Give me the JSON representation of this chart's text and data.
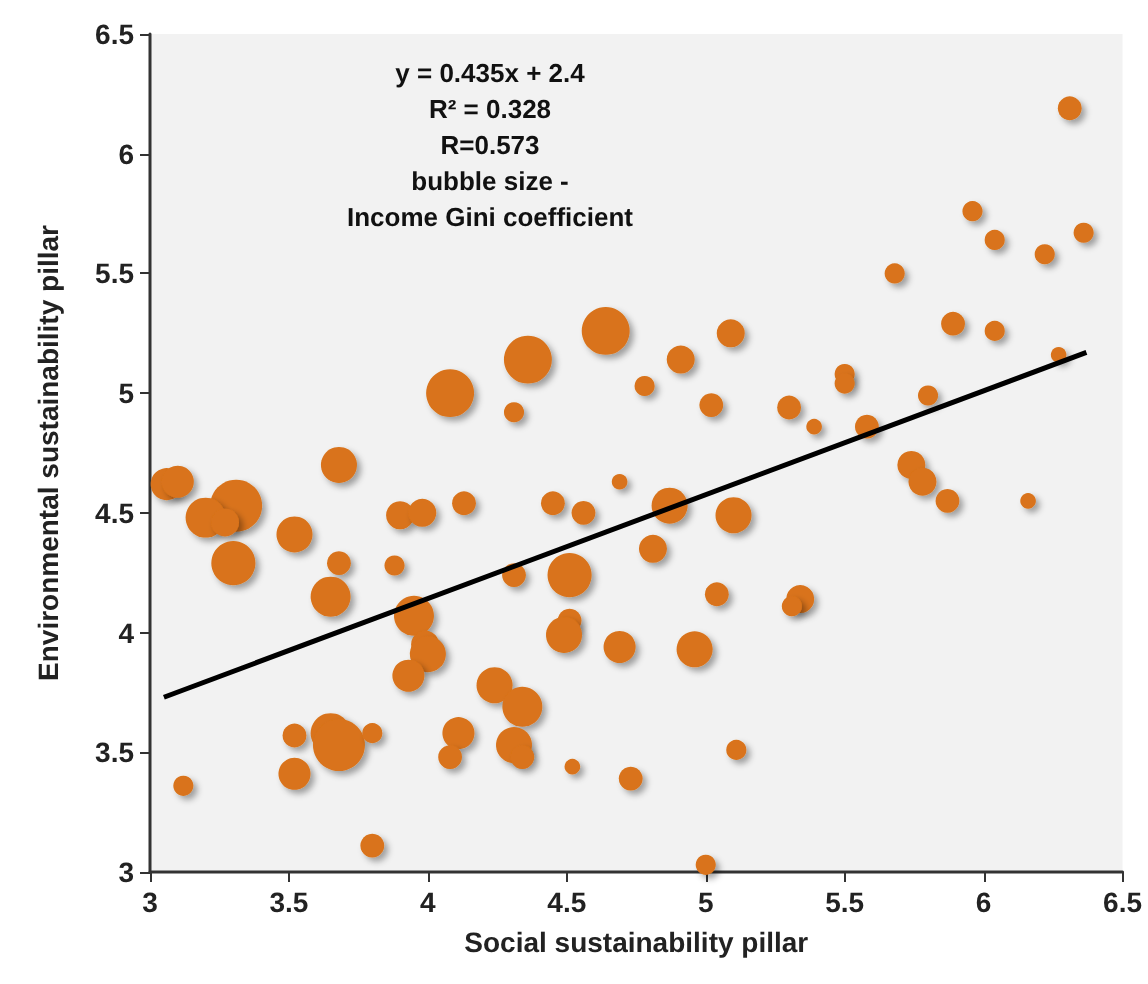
{
  "chart_data": {
    "type": "bubble",
    "xlabel": "Social sustainability pillar",
    "ylabel": "Environmental sustainability pillar",
    "annotations": [
      "y = 0.435x + 2.4",
      "R² = 0.328",
      "R=0.573",
      "bubble size -",
      "Income Gini coefficient"
    ],
    "xlim": [
      3,
      6.5
    ],
    "xticks": [
      3,
      3.5,
      4,
      4.5,
      5,
      5.5,
      6,
      6.5
    ],
    "ylim": [
      3,
      6.5
    ],
    "yticks": [
      3,
      3.5,
      4,
      4.5,
      5,
      5.5,
      6,
      6.5
    ],
    "grid": false,
    "series": [
      {
        "color": "#d9731a",
        "x": [
          3.06,
          3.1,
          3.31,
          3.2,
          3.27,
          3.3,
          3.52,
          3.68,
          3.68,
          3.65,
          3.88,
          3.9,
          3.98,
          4.13,
          4.45,
          4.56,
          4.69,
          4.31,
          4.51,
          3.95,
          4.51,
          4.49,
          4.69,
          3.99,
          4.0,
          3.93,
          4.24,
          4.34,
          4.11,
          4.31,
          4.34,
          4.08,
          4.52,
          4.73,
          3.52,
          3.65,
          3.68,
          3.8,
          3.52,
          3.12,
          3.8,
          4.08,
          4.31,
          4.36,
          4.64,
          4.91,
          5.09,
          4.78,
          5.02,
          5.3,
          5.39,
          5.58,
          5.5,
          5.5,
          5.8,
          5.68,
          5.89,
          6.04,
          6.27,
          6.31,
          5.96,
          6.04,
          6.22,
          6.36,
          5.74,
          5.78,
          5.87,
          6.16,
          4.87,
          5.1,
          4.81,
          5.04,
          5.34,
          5.31,
          4.96,
          5.11,
          5.0
        ],
        "values": [
          4.62,
          4.63,
          4.53,
          4.48,
          4.46,
          4.29,
          4.41,
          4.7,
          4.29,
          4.15,
          4.28,
          4.49,
          4.5,
          4.54,
          4.54,
          4.5,
          4.63,
          4.24,
          4.24,
          4.07,
          4.05,
          3.99,
          3.94,
          3.95,
          3.91,
          3.82,
          3.78,
          3.69,
          3.58,
          3.53,
          3.48,
          3.48,
          3.44,
          3.39,
          3.57,
          3.58,
          3.53,
          3.58,
          3.41,
          3.36,
          3.11,
          5.0,
          4.92,
          5.14,
          5.26,
          5.14,
          5.25,
          5.03,
          4.95,
          4.94,
          4.86,
          4.86,
          5.08,
          5.04,
          4.99,
          5.5,
          5.29,
          5.26,
          5.16,
          6.19,
          5.76,
          5.64,
          5.58,
          5.67,
          4.7,
          4.63,
          4.55,
          4.55,
          4.53,
          4.49,
          4.35,
          4.16,
          4.14,
          4.11,
          3.93,
          3.51,
          3.03
        ],
        "sizes": [
          0.38,
          0.38,
          1,
          0.59,
          0.29,
          0.72,
          0.48,
          0.48,
          0.21,
          0.59,
          0.15,
          0.29,
          0.29,
          0.21,
          0.21,
          0.21,
          0.09,
          0.21,
          0.72,
          0.59,
          0.21,
          0.48,
          0.38,
          0.29,
          0.48,
          0.38,
          0.48,
          0.59,
          0.38,
          0.48,
          0.21,
          0.21,
          0.09,
          0.21,
          0.21,
          0.59,
          1,
          0.15,
          0.38,
          0.15,
          0.21,
          0.85,
          0.15,
          0.85,
          0.85,
          0.29,
          0.29,
          0.15,
          0.21,
          0.21,
          0.09,
          0.21,
          0.15,
          0.15,
          0.15,
          0.15,
          0.21,
          0.15,
          0.09,
          0.21,
          0.15,
          0.15,
          0.15,
          0.15,
          0.29,
          0.29,
          0.21,
          0.09,
          0.48,
          0.48,
          0.29,
          0.21,
          0.29,
          0.15,
          0.48,
          0.15,
          0.15
        ]
      },
      {
        "type": "line",
        "color": "#000000",
        "x": [
          3.05,
          6.37
        ],
        "values": [
          3.73,
          5.17
        ]
      }
    ]
  }
}
